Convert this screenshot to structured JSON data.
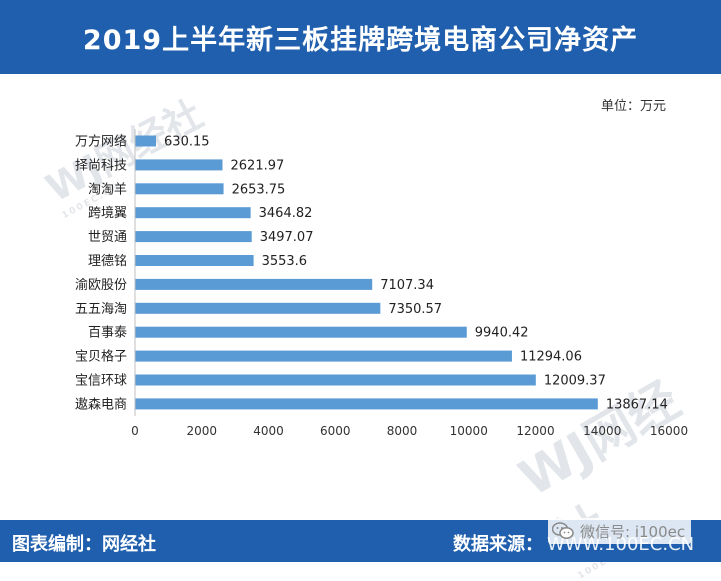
{
  "header": {
    "title": "2019上半年新三板挂牌跨境电商公司净资产"
  },
  "unit_label": "单位：万元",
  "footer": {
    "left": "图表编制：网经社",
    "right": "数据来源：",
    "right_src": "WWW.100EC.CN"
  },
  "wechat": {
    "label": "微信号: i100ec"
  },
  "watermark": {
    "text": "WJ网经社",
    "sub": "100EC.CN"
  },
  "colors": {
    "header_bg": "#1f5fae",
    "bar": "#5b9bd5"
  },
  "chart_data": {
    "type": "bar",
    "orientation": "horizontal",
    "title": "2019上半年新三板挂牌跨境电商公司净资产",
    "unit": "万元",
    "categories": [
      "万方网络",
      "择尚科技",
      "淘淘羊",
      "跨境翼",
      "世贸通",
      "理德铭",
      "渝欧股份",
      "五五海淘",
      "百事泰",
      "宝贝格子",
      "宝信环球",
      "遨森电商"
    ],
    "values": [
      630.15,
      2621.97,
      2653.75,
      3464.82,
      3497.07,
      3553.6,
      7107.34,
      7350.57,
      9940.42,
      11294.06,
      12009.37,
      13867.14
    ],
    "value_labels": [
      "630.15",
      "2621.97",
      "2653.75",
      "3464.82",
      "3497.07",
      "3553.6",
      "7107.34",
      "7350.57",
      "9940.42",
      "11294.06",
      "12009.37",
      "13867.14"
    ],
    "xlim": [
      0,
      16000
    ],
    "xticks": [
      "0",
      "2000",
      "4000",
      "6000",
      "8000",
      "10000",
      "12000",
      "14000",
      "16000"
    ],
    "grid": false,
    "legend": "none"
  }
}
